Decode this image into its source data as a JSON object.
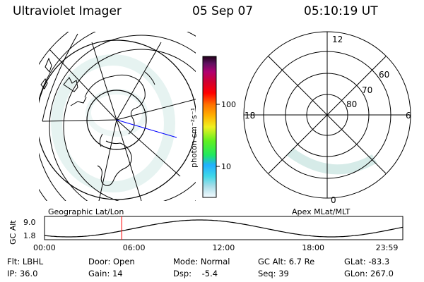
{
  "header": {
    "title": "Ultraviolet Imager",
    "date": "05 Sep 07",
    "time": "05:10:19 UT"
  },
  "colorbar": {
    "label": "photon cm⁻²s⁻¹",
    "ticks": [
      "100",
      "10"
    ]
  },
  "geographic_panel": {
    "label": "Geographic Lat/Lon"
  },
  "apex_panel": {
    "label": "Apex MLat/MLT",
    "mlt_labels": {
      "top": "12",
      "left": "18",
      "right": "6",
      "bottom": "0"
    },
    "lat_labels": [
      "80",
      "70",
      "60"
    ]
  },
  "altitude_plot": {
    "ylabel": "GC Alt",
    "y_ticks": [
      "9.0",
      "1.8"
    ],
    "x_ticks": [
      "00:00",
      "06:00",
      "12:00",
      "18:00",
      "23:59"
    ],
    "current_time_hours": 5.17
  },
  "footer": {
    "row1": {
      "flt": "Flt: LBHL",
      "door": "Door: Open",
      "mode": "Mode: Normal",
      "gc_alt": "GC Alt: 6.7 Re",
      "glat": "GLat: -83.3"
    },
    "row2": {
      "ip": "IP: 36.0",
      "gain": "Gain: 14",
      "dsp": "Dsp:    -5.4",
      "seq": "Seq: 39",
      "glon": "GLon: 267.0"
    }
  },
  "colors": {
    "foreground": "#000000",
    "background": "#ffffff",
    "aurora": "#cfe8e4",
    "marker": "#ff0000",
    "meridian": "#0000ff"
  }
}
